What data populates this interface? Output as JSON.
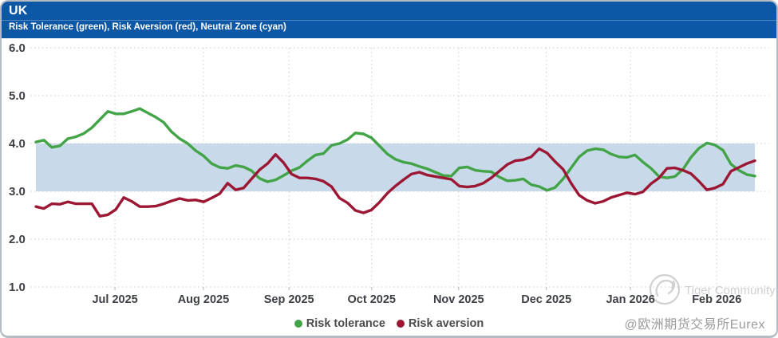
{
  "header": {
    "title": "UK",
    "subtitle": "Risk Tolerance (green), Risk Aversion (red), Neutral Zone (cyan)"
  },
  "colors": {
    "header_bg": "#0d57a7",
    "tolerance_green": "#43a447",
    "aversion_red": "#9c1733",
    "neutral_zone_cyan": "#c8d9e9",
    "grid": "#d4d4d4",
    "axis_text": "#3d4045",
    "watermark_gray": "#c9c9c9"
  },
  "chart_data": {
    "type": "line",
    "title": "UK",
    "subtitle": "Risk Tolerance (green), Risk Aversion (red), Neutral Zone (cyan)",
    "ylim": [
      1.0,
      6.0
    ],
    "grid": "dotted",
    "y_ticks": [
      {
        "value": 6.0,
        "label": "6.0"
      },
      {
        "value": 5.0,
        "label": "5.0"
      },
      {
        "value": 4.0,
        "label": "4.0"
      },
      {
        "value": 3.0,
        "label": "3.0"
      },
      {
        "value": 2.0,
        "label": "2.0"
      },
      {
        "value": 1.0,
        "label": "1.0"
      }
    ],
    "x_ticks": [
      {
        "label": "Jul 2025",
        "f": 0.11
      },
      {
        "label": "Aug 2025",
        "f": 0.233
      },
      {
        "label": "Sep 2025",
        "f": 0.352
      },
      {
        "label": "Oct 2025",
        "f": 0.467
      },
      {
        "label": "Nov 2025",
        "f": 0.588
      },
      {
        "label": "Dec 2025",
        "f": 0.71
      },
      {
        "label": "Jan 2026",
        "f": 0.827
      },
      {
        "label": "Feb 2026",
        "f": 0.947
      }
    ],
    "x_span_note": "series values are evenly spaced across the plotted data span (early Jun 2025 to mid Feb 2026)",
    "neutral_zone": {
      "from": 3.0,
      "to": 4.0
    },
    "series": [
      {
        "name": "Risk tolerance",
        "color": "#43a447",
        "values": [
          4.03,
          4.07,
          3.92,
          3.95,
          4.1,
          4.14,
          4.21,
          4.33,
          4.5,
          4.67,
          4.62,
          4.62,
          4.67,
          4.73,
          4.64,
          4.55,
          4.44,
          4.24,
          4.1,
          4.0,
          3.85,
          3.74,
          3.58,
          3.5,
          3.48,
          3.54,
          3.51,
          3.43,
          3.27,
          3.2,
          3.24,
          3.33,
          3.43,
          3.5,
          3.64,
          3.76,
          3.79,
          3.96,
          4.0,
          4.08,
          4.22,
          4.2,
          4.12,
          3.95,
          3.78,
          3.67,
          3.61,
          3.58,
          3.52,
          3.47,
          3.4,
          3.33,
          3.32,
          3.49,
          3.51,
          3.44,
          3.42,
          3.41,
          3.3,
          3.22,
          3.23,
          3.26,
          3.14,
          3.1,
          3.02,
          3.08,
          3.26,
          3.49,
          3.72,
          3.85,
          3.89,
          3.87,
          3.78,
          3.72,
          3.71,
          3.76,
          3.61,
          3.48,
          3.31,
          3.28,
          3.31,
          3.46,
          3.71,
          3.9,
          4.01,
          3.97,
          3.86,
          3.57,
          3.44,
          3.35,
          3.32
        ]
      },
      {
        "name": "Risk aversion",
        "color": "#9c1733",
        "values": [
          2.68,
          2.64,
          2.74,
          2.73,
          2.78,
          2.74,
          2.74,
          2.74,
          2.48,
          2.51,
          2.62,
          2.87,
          2.79,
          2.68,
          2.68,
          2.69,
          2.74,
          2.8,
          2.85,
          2.81,
          2.82,
          2.78,
          2.86,
          2.95,
          3.17,
          3.03,
          3.07,
          3.26,
          3.45,
          3.58,
          3.77,
          3.6,
          3.36,
          3.28,
          3.28,
          3.26,
          3.21,
          3.1,
          2.86,
          2.76,
          2.6,
          2.55,
          2.61,
          2.77,
          2.96,
          3.11,
          3.24,
          3.36,
          3.4,
          3.34,
          3.31,
          3.28,
          3.25,
          3.11,
          3.09,
          3.11,
          3.17,
          3.28,
          3.42,
          3.56,
          3.64,
          3.66,
          3.72,
          3.89,
          3.8,
          3.62,
          3.46,
          3.17,
          2.92,
          2.81,
          2.75,
          2.79,
          2.87,
          2.92,
          2.97,
          2.94,
          2.99,
          3.16,
          3.28,
          3.48,
          3.49,
          3.44,
          3.37,
          3.21,
          3.03,
          3.07,
          3.15,
          3.42,
          3.5,
          3.58,
          3.64
        ]
      }
    ],
    "legend_position": "bottom-center"
  },
  "legend": [
    {
      "label": "Risk tolerance",
      "color": "#43a447"
    },
    {
      "label": "Risk aversion",
      "color": "#9c1733"
    }
  ],
  "watermark": {
    "text": "Tiger Community"
  },
  "footer": {
    "credit": "@欧洲期货交易所Eurex"
  }
}
